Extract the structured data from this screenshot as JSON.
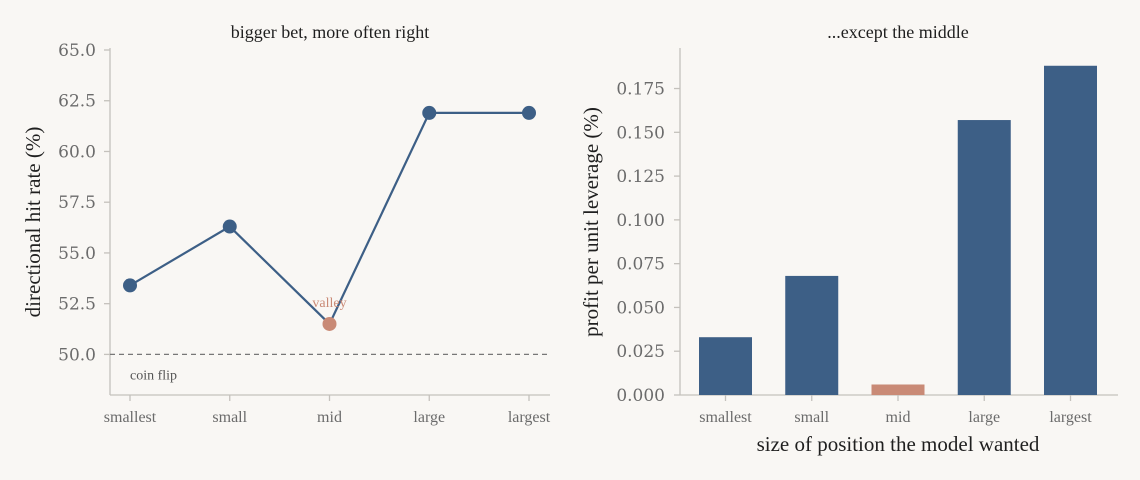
{
  "colors": {
    "primary": "#3d5f86",
    "highlight": "#c98a76",
    "axis": "#c4c1bc",
    "reference": "#777777",
    "background": "#f9f7f4"
  },
  "chart_data": [
    {
      "type": "line",
      "title": "bigger bet, more often right",
      "xlabel": "",
      "ylabel": "directional hit rate (%)",
      "categories": [
        "smallest",
        "small",
        "mid",
        "large",
        "largest"
      ],
      "values": [
        53.4,
        56.3,
        51.5,
        61.9,
        61.9
      ],
      "highlight_index": 2,
      "highlight_label": "valley",
      "ylim": [
        48.0,
        65.0
      ],
      "yticks": [
        "50.0",
        "52.5",
        "55.0",
        "57.5",
        "60.0",
        "62.5",
        "65.0"
      ],
      "reference_line": {
        "y": 50.0,
        "label": "coin flip",
        "style": "dashed"
      },
      "grid": false
    },
    {
      "type": "bar",
      "title": "...except the middle",
      "xlabel": "size of position the model wanted",
      "ylabel": "profit per unit leverage (%)",
      "categories": [
        "smallest",
        "small",
        "mid",
        "large",
        "largest"
      ],
      "values": [
        0.033,
        0.068,
        0.006,
        0.157,
        0.188
      ],
      "highlight_index": 2,
      "ylim": [
        0.0,
        0.197
      ],
      "yticks": [
        "0.000",
        "0.025",
        "0.050",
        "0.075",
        "0.100",
        "0.125",
        "0.150",
        "0.175"
      ],
      "grid": false
    }
  ]
}
